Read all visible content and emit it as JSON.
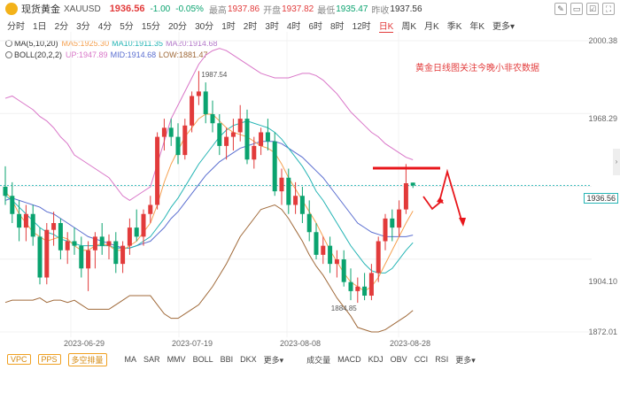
{
  "header": {
    "title": "现货黄金",
    "symbol": "XAUUSD",
    "price": "1936.56",
    "change": "-1.00",
    "change_pct": "-0.05%",
    "high_label": "最高",
    "high": "1937.86",
    "open_label": "开盘",
    "open": "1937.82",
    "low_label": "最低",
    "low": "1935.47",
    "prev_label": "昨收",
    "prev": "1937.56",
    "tools": [
      "✎",
      "▭",
      "☑",
      "⛶"
    ]
  },
  "periods": [
    "分时",
    "1日",
    "2分",
    "3分",
    "4分",
    "5分",
    "15分",
    "20分",
    "30分",
    "1时",
    "2时",
    "3时",
    "4时",
    "6时",
    "8时",
    "12时",
    "日K",
    "周K",
    "月K",
    "季K",
    "年K",
    "更多▾"
  ],
  "active_period": "日K",
  "indicators": {
    "ma_label": "MA(5,10,20)",
    "ma5": "MA5:1925.30",
    "ma10": "MA10:1911.35",
    "ma20": "MA20:1914.68",
    "boll_label": "BOLL(20,2,2)",
    "up": "UP:1947.89",
    "mid": "MID:1914.68",
    "low": "LOW:1881.47"
  },
  "annotation": "黄金日线图关注今晚小非农数据",
  "yaxis": [
    "2000.38",
    "1968.29",
    "1936.56",
    "1904.10",
    "1872.01"
  ],
  "xaxis": [
    "2023-06-29",
    "2023-07-19",
    "2023-08-08",
    "2023-08-28"
  ],
  "peak_label": "1987.54",
  "trough_label": "1884.85",
  "bottom": {
    "left_buttons": [
      "VPC",
      "PPS",
      "多空排量"
    ],
    "main_inds": [
      "MA",
      "SAR",
      "MMV",
      "BOLL",
      "BBI",
      "DKX",
      "更多▾"
    ],
    "sub_inds": [
      "成交量",
      "MACD",
      "KDJ",
      "OBV",
      "CCI",
      "RSI",
      "更多▾"
    ]
  },
  "colors": {
    "up_candle": "#e23b3b",
    "down_candle": "#0aa36f",
    "ma5": "#f5a04f",
    "ma10": "#26b5b5",
    "boll_up": "#d976c8",
    "boll_mid": "#5a6ed0",
    "boll_low": "#a06a3a"
  },
  "chart_data": {
    "type": "candlestick",
    "ylim": [
      1872.01,
      2000.38
    ],
    "candles": [
      {
        "o": 1936,
        "h": 1945,
        "l": 1928,
        "c": 1932
      },
      {
        "o": 1932,
        "h": 1938,
        "l": 1920,
        "c": 1924
      },
      {
        "o": 1924,
        "h": 1930,
        "l": 1912,
        "c": 1918
      },
      {
        "o": 1918,
        "h": 1928,
        "l": 1912,
        "c": 1924
      },
      {
        "o": 1924,
        "h": 1928,
        "l": 1910,
        "c": 1914
      },
      {
        "o": 1914,
        "h": 1918,
        "l": 1893,
        "c": 1896
      },
      {
        "o": 1896,
        "h": 1920,
        "l": 1893,
        "c": 1917
      },
      {
        "o": 1917,
        "h": 1925,
        "l": 1910,
        "c": 1920
      },
      {
        "o": 1920,
        "h": 1922,
        "l": 1904,
        "c": 1908
      },
      {
        "o": 1908,
        "h": 1916,
        "l": 1902,
        "c": 1912
      },
      {
        "o": 1912,
        "h": 1918,
        "l": 1906,
        "c": 1910
      },
      {
        "o": 1910,
        "h": 1914,
        "l": 1896,
        "c": 1900
      },
      {
        "o": 1900,
        "h": 1912,
        "l": 1890,
        "c": 1908
      },
      {
        "o": 1908,
        "h": 1916,
        "l": 1900,
        "c": 1914
      },
      {
        "o": 1914,
        "h": 1920,
        "l": 1906,
        "c": 1910
      },
      {
        "o": 1910,
        "h": 1915,
        "l": 1904,
        "c": 1912
      },
      {
        "o": 1912,
        "h": 1916,
        "l": 1898,
        "c": 1902
      },
      {
        "o": 1902,
        "h": 1912,
        "l": 1898,
        "c": 1910
      },
      {
        "o": 1910,
        "h": 1922,
        "l": 1906,
        "c": 1918
      },
      {
        "o": 1918,
        "h": 1926,
        "l": 1912,
        "c": 1914
      },
      {
        "o": 1914,
        "h": 1926,
        "l": 1910,
        "c": 1924
      },
      {
        "o": 1924,
        "h": 1932,
        "l": 1920,
        "c": 1928
      },
      {
        "o": 1928,
        "h": 1960,
        "l": 1926,
        "c": 1958
      },
      {
        "o": 1958,
        "h": 1966,
        "l": 1952,
        "c": 1962
      },
      {
        "o": 1962,
        "h": 1966,
        "l": 1954,
        "c": 1958
      },
      {
        "o": 1958,
        "h": 1964,
        "l": 1946,
        "c": 1950
      },
      {
        "o": 1950,
        "h": 1966,
        "l": 1948,
        "c": 1963
      },
      {
        "o": 1963,
        "h": 1978,
        "l": 1960,
        "c": 1976
      },
      {
        "o": 1976,
        "h": 1987,
        "l": 1972,
        "c": 1978
      },
      {
        "o": 1978,
        "h": 1982,
        "l": 1964,
        "c": 1968
      },
      {
        "o": 1968,
        "h": 1974,
        "l": 1960,
        "c": 1964
      },
      {
        "o": 1964,
        "h": 1968,
        "l": 1950,
        "c": 1954
      },
      {
        "o": 1954,
        "h": 1962,
        "l": 1948,
        "c": 1958
      },
      {
        "o": 1958,
        "h": 1966,
        "l": 1952,
        "c": 1960
      },
      {
        "o": 1960,
        "h": 1972,
        "l": 1956,
        "c": 1966
      },
      {
        "o": 1966,
        "h": 1970,
        "l": 1946,
        "c": 1948
      },
      {
        "o": 1948,
        "h": 1958,
        "l": 1944,
        "c": 1954
      },
      {
        "o": 1954,
        "h": 1962,
        "l": 1950,
        "c": 1960
      },
      {
        "o": 1960,
        "h": 1966,
        "l": 1952,
        "c": 1956
      },
      {
        "o": 1956,
        "h": 1960,
        "l": 1932,
        "c": 1934
      },
      {
        "o": 1934,
        "h": 1944,
        "l": 1928,
        "c": 1940
      },
      {
        "o": 1940,
        "h": 1944,
        "l": 1924,
        "c": 1928
      },
      {
        "o": 1928,
        "h": 1938,
        "l": 1924,
        "c": 1932
      },
      {
        "o": 1932,
        "h": 1936,
        "l": 1920,
        "c": 1924
      },
      {
        "o": 1924,
        "h": 1930,
        "l": 1912,
        "c": 1916
      },
      {
        "o": 1916,
        "h": 1920,
        "l": 1904,
        "c": 1906
      },
      {
        "o": 1906,
        "h": 1914,
        "l": 1902,
        "c": 1910
      },
      {
        "o": 1910,
        "h": 1914,
        "l": 1898,
        "c": 1902
      },
      {
        "o": 1902,
        "h": 1908,
        "l": 1896,
        "c": 1904
      },
      {
        "o": 1904,
        "h": 1908,
        "l": 1892,
        "c": 1894
      },
      {
        "o": 1894,
        "h": 1900,
        "l": 1886,
        "c": 1890
      },
      {
        "o": 1890,
        "h": 1896,
        "l": 1884.85,
        "c": 1892
      },
      {
        "o": 1892,
        "h": 1898,
        "l": 1886,
        "c": 1888
      },
      {
        "o": 1888,
        "h": 1902,
        "l": 1886,
        "c": 1898
      },
      {
        "o": 1898,
        "h": 1914,
        "l": 1894,
        "c": 1912
      },
      {
        "o": 1912,
        "h": 1924,
        "l": 1908,
        "c": 1922
      },
      {
        "o": 1922,
        "h": 1926,
        "l": 1912,
        "c": 1918
      },
      {
        "o": 1918,
        "h": 1930,
        "l": 1914,
        "c": 1926
      },
      {
        "o": 1926,
        "h": 1946,
        "l": 1924,
        "c": 1937.56
      },
      {
        "o": 1937.82,
        "h": 1937.86,
        "l": 1935.47,
        "c": 1936.56
      }
    ],
    "series": [
      {
        "key": "boll_up",
        "values": [
          1975,
          1976,
          1974,
          1972,
          1970,
          1967,
          1965,
          1962,
          1958,
          1955,
          1950,
          1948,
          1946,
          1944,
          1942,
          1940,
          1936,
          1932,
          1930,
          1932,
          1934,
          1936,
          1946,
          1956,
          1966,
          1972,
          1978,
          1984,
          1990,
          1994,
          1996,
          1997,
          1996,
          1994,
          1992,
          1990,
          1988,
          1986,
          1985,
          1984,
          1984,
          1984,
          1985,
          1986,
          1986,
          1985,
          1983,
          1980,
          1977,
          1973,
          1969,
          1966,
          1963,
          1960,
          1958,
          1955,
          1953,
          1951,
          1949,
          1947.89
        ]
      },
      {
        "key": "boll_mid",
        "values": [
          1930,
          1931,
          1930,
          1929,
          1928,
          1927,
          1925,
          1924,
          1922,
          1920,
          1918,
          1916,
          1914,
          1913,
          1912,
          1911,
          1910,
          1909,
          1909,
          1910,
          1911,
          1912,
          1915,
          1918,
          1922,
          1925,
          1929,
          1933,
          1937,
          1941,
          1944,
          1947,
          1949,
          1951,
          1953,
          1954,
          1955,
          1956,
          1956,
          1956,
          1955,
          1953,
          1951,
          1949,
          1946,
          1943,
          1940,
          1936,
          1932,
          1928,
          1924,
          1920,
          1918,
          1916,
          1915,
          1914,
          1914,
          1914,
          1914,
          1914.68
        ]
      },
      {
        "key": "boll_low",
        "values": [
          1885,
          1886,
          1886,
          1886,
          1886,
          1887,
          1885,
          1886,
          1886,
          1885,
          1886,
          1884,
          1882,
          1882,
          1882,
          1882,
          1884,
          1886,
          1888,
          1888,
          1888,
          1888,
          1884,
          1880,
          1878,
          1878,
          1880,
          1882,
          1884,
          1888,
          1892,
          1897,
          1902,
          1908,
          1914,
          1918,
          1922,
          1926,
          1927,
          1928,
          1926,
          1922,
          1917,
          1912,
          1906,
          1901,
          1897,
          1892,
          1887,
          1883,
          1879,
          1874,
          1873,
          1872,
          1872,
          1873,
          1875,
          1877,
          1879,
          1881.47
        ]
      },
      {
        "key": "ma10",
        "values": [
          1932,
          1930,
          1927,
          1924,
          1921,
          1918,
          1916,
          1915,
          1913,
          1912,
          1911,
          1910,
          1910,
          1910,
          1910,
          1910,
          1909,
          1909,
          1909,
          1910,
          1912,
          1914,
          1918,
          1922,
          1927,
          1931,
          1936,
          1941,
          1946,
          1950,
          1954,
          1958,
          1961,
          1963,
          1964,
          1965,
          1964,
          1963,
          1962,
          1960,
          1957,
          1953,
          1949,
          1945,
          1940,
          1934,
          1930,
          1925,
          1920,
          1915,
          1910,
          1906,
          1902,
          1899,
          1898,
          1898,
          1900,
          1904,
          1908,
          1911.35
        ]
      },
      {
        "key": "ma5",
        "values": [
          1934,
          1930,
          1924,
          1920,
          1916,
          1914,
          1912,
          1913,
          1914,
          1913,
          1910,
          1908,
          1908,
          1910,
          1911,
          1910,
          1908,
          1908,
          1910,
          1912,
          1916,
          1920,
          1928,
          1938,
          1946,
          1952,
          1958,
          1962,
          1966,
          1968,
          1968,
          1965,
          1962,
          1960,
          1959,
          1958,
          1956,
          1954,
          1953,
          1951,
          1946,
          1940,
          1935,
          1930,
          1925,
          1920,
          1914,
          1908,
          1903,
          1898,
          1894,
          1892,
          1890,
          1892,
          1896,
          1902,
          1908,
          1914,
          1920,
          1925.3
        ]
      }
    ]
  }
}
